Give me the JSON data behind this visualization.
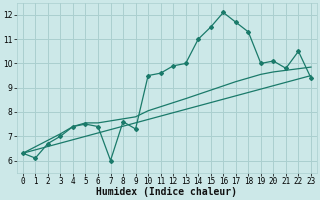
{
  "xlabel": "Humidex (Indice chaleur)",
  "xlim": [
    -0.5,
    23.5
  ],
  "ylim": [
    5.5,
    12.5
  ],
  "yticks": [
    6,
    7,
    8,
    9,
    10,
    11,
    12
  ],
  "xticks": [
    0,
    1,
    2,
    3,
    4,
    5,
    6,
    7,
    8,
    9,
    10,
    11,
    12,
    13,
    14,
    15,
    16,
    17,
    18,
    19,
    20,
    21,
    22,
    23
  ],
  "bg_color": "#cce8e8",
  "grid_color": "#aacfcf",
  "line_color": "#1a7a6a",
  "main_line": {
    "x": [
      0,
      1,
      2,
      3,
      4,
      5,
      6,
      7,
      8,
      9,
      10,
      11,
      12,
      13,
      14,
      15,
      16,
      17,
      18,
      19,
      20,
      21,
      22,
      23
    ],
    "y": [
      6.3,
      6.1,
      6.7,
      7.0,
      7.4,
      7.5,
      7.4,
      6.0,
      7.6,
      7.3,
      9.5,
      9.6,
      9.9,
      10.0,
      11.0,
      11.5,
      12.1,
      11.7,
      11.3,
      10.0,
      10.1,
      9.8,
      10.5,
      9.4
    ]
  },
  "trend_line": {
    "x": [
      0,
      23
    ],
    "y": [
      6.3,
      9.5
    ]
  },
  "smooth_line": {
    "x": [
      0,
      3,
      4,
      5,
      6,
      9,
      10,
      13,
      15,
      17,
      19,
      20,
      23
    ],
    "y": [
      6.3,
      7.1,
      7.4,
      7.55,
      7.55,
      7.8,
      8.05,
      8.55,
      8.9,
      9.25,
      9.55,
      9.65,
      9.85
    ]
  },
  "xlabel_fontsize": 7,
  "tick_fontsize": 5.5
}
